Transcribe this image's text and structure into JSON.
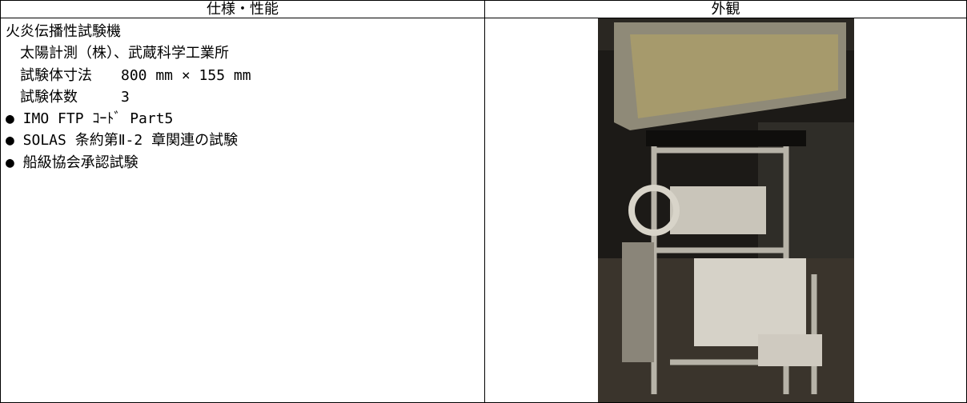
{
  "table": {
    "header": [
      "仕様・性能",
      "外観"
    ],
    "spec": {
      "title": "火炎伝播性試験機",
      "lines": [
        "太陽計測（株）、武蔵科学工業所",
        "試験体寸法　　800 mm × 155 mm",
        "試験体数　　　3"
      ],
      "bullets": [
        "● IMO FTP ｺｰﾄﾞ Part5",
        "● SOLAS 条約第Ⅱ-2 章関連の試験",
        "● 船級協会承認試験"
      ]
    }
  }
}
